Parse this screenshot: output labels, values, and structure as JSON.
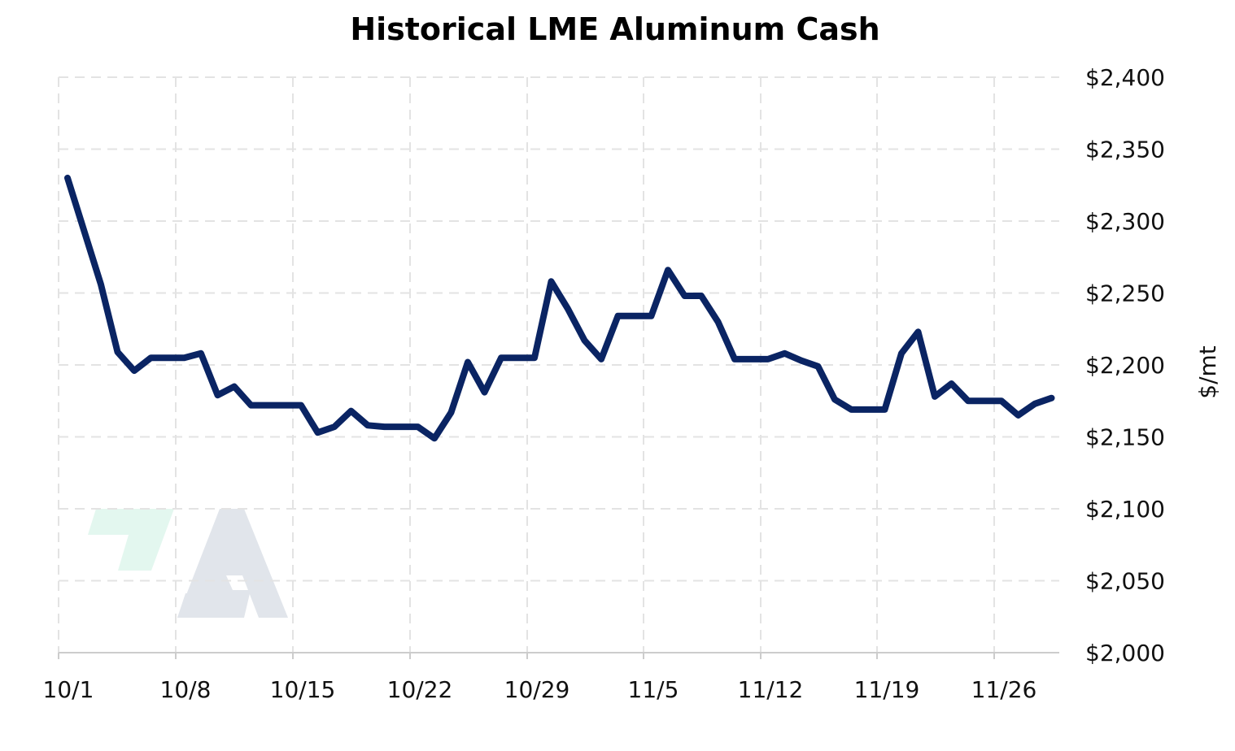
{
  "chart_data": {
    "type": "line",
    "title": "Historical LME Aluminum Cash",
    "xlabel": "",
    "ylabel": "$/mt",
    "ylim": [
      2000,
      2400
    ],
    "yticks": [
      2000,
      2050,
      2100,
      2150,
      2200,
      2250,
      2300,
      2350,
      2400
    ],
    "ytick_labels": [
      "$2,000",
      "$2,050",
      "$2,100",
      "$2,150",
      "$2,200",
      "$2,250",
      "$2,300",
      "$2,350",
      "$2,400"
    ],
    "xtick_labels": [
      "10/1",
      "10/8",
      "10/15",
      "10/22",
      "10/29",
      "11/5",
      "11/12",
      "11/19",
      "11/26"
    ],
    "x_axis_range": [
      "10/1",
      "11/30"
    ],
    "grid": true,
    "y_axis_side": "right",
    "line_color": "#0a2463",
    "series": [
      {
        "x": [
          "10/1",
          "10/2",
          "10/3",
          "10/4",
          "10/5",
          "10/6",
          "10/7",
          "10/8",
          "10/9",
          "10/10",
          "10/11",
          "10/12",
          "10/13",
          "10/14",
          "10/15",
          "10/16",
          "10/17",
          "10/18",
          "10/19",
          "10/20",
          "10/21",
          "10/22",
          "10/23",
          "10/24",
          "10/25",
          "10/26",
          "10/27",
          "10/28",
          "10/29",
          "10/30",
          "10/31",
          "11/1",
          "11/2",
          "11/3",
          "11/4",
          "11/5",
          "11/6",
          "11/7",
          "11/8",
          "11/9",
          "11/10",
          "11/11",
          "11/12",
          "11/13",
          "11/14",
          "11/15",
          "11/16",
          "11/17",
          "11/18",
          "11/19",
          "11/20",
          "11/21",
          "11/22",
          "11/23",
          "11/24",
          "11/25",
          "11/26",
          "11/27",
          "11/28",
          "11/29"
        ],
        "values": [
          2330,
          2293,
          2256,
          2209,
          2196,
          2205,
          2205,
          2205,
          2208,
          2179,
          2185,
          2172,
          2172,
          2172,
          2172,
          2153,
          2157,
          2168,
          2158,
          2157,
          2157,
          2157,
          2149,
          2167,
          2202,
          2181,
          2205,
          2205,
          2205,
          2258,
          2239,
          2217,
          2204,
          2234,
          2234,
          2234,
          2266,
          2248,
          2248,
          2230,
          2204,
          2204,
          2204,
          2208,
          2203,
          2199,
          2176,
          2169,
          2169,
          2169,
          2208,
          2223,
          2178,
          2187,
          2175,
          2175,
          2175,
          2165,
          2173,
          2177
        ]
      }
    ]
  }
}
